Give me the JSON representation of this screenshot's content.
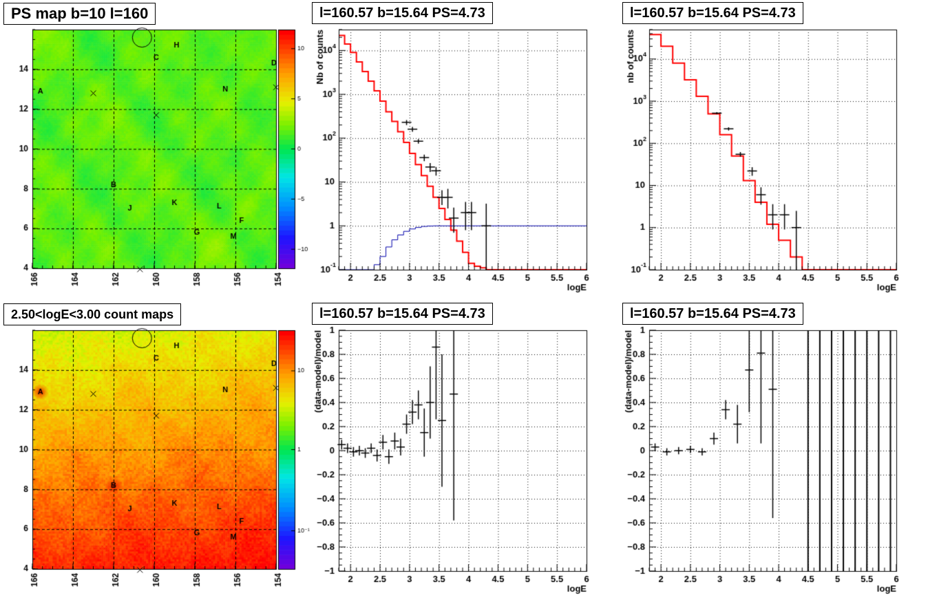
{
  "panels": {
    "p1_title": "PS map b=10 l=160",
    "p2_title": "l=160.57 b=15.64 PS=4.73",
    "p3_title": "l=160.57 b=15.64 PS=4.73",
    "p4_title": "2.50<logE<3.00 count maps",
    "p5_title": "l=160.57 b=15.64 PS=4.73",
    "p6_title": "l=160.57 b=15.64 PS=4.73"
  },
  "chart_data": [
    {
      "id": "ps-map",
      "type": "heatmap",
      "title": "PS map b=10 l=160",
      "xlim": [
        166,
        154
      ],
      "ylim": [
        4,
        16
      ],
      "x_ticks": [
        "166",
        "164",
        "162",
        "160",
        "158",
        "156",
        "154"
      ],
      "y_ticks": [
        "4",
        "6",
        "8",
        "10",
        "12",
        "14"
      ],
      "colorbar_range": [
        -12,
        12
      ],
      "colorbar_ticks": [
        "10",
        "5",
        "0",
        "−5",
        "−10"
      ],
      "sources": [
        {
          "label": "A",
          "l": 165.6,
          "b": 12.9
        },
        {
          "label": "B",
          "l": 162.0,
          "b": 8.2
        },
        {
          "label": "C",
          "l": 159.9,
          "b": 14.6
        },
        {
          "label": "D",
          "l": 154.1,
          "b": 14.3
        },
        {
          "label": "F",
          "l": 155.7,
          "b": 6.4
        },
        {
          "label": "G",
          "l": 157.9,
          "b": 5.8
        },
        {
          "label": "H",
          "l": 158.9,
          "b": 15.2
        },
        {
          "label": "J",
          "l": 161.2,
          "b": 7.0
        },
        {
          "label": "K",
          "l": 159.0,
          "b": 7.3
        },
        {
          "label": "L",
          "l": 156.8,
          "b": 7.1
        },
        {
          "label": "M",
          "l": 156.1,
          "b": 5.6
        },
        {
          "label": "N",
          "l": 156.5,
          "b": 13.0
        }
      ],
      "crosses": [
        {
          "l": 163.0,
          "b": 12.8
        },
        {
          "l": 159.9,
          "b": 11.7
        },
        {
          "l": 160.7,
          "b": 3.95
        },
        {
          "l": 154.0,
          "b": 13.1
        }
      ],
      "circle": {
        "l": 160.6,
        "b": 15.6
      }
    },
    {
      "id": "spectrum-left",
      "type": "line",
      "title": "l=160.57 b=15.64 PS=4.73",
      "xlabel": "logE",
      "ylabel": "Nb of counts",
      "yscale": "log",
      "xlim": [
        1.8,
        6
      ],
      "ylim": [
        0.1,
        30000
      ],
      "x_ticks": [
        "2",
        "2.5",
        "3",
        "3.5",
        "4",
        "4.5",
        "5",
        "5.5",
        "6"
      ],
      "y_ticks": [
        "10^-1",
        "1",
        "10",
        "10^2",
        "10^3",
        "10^4"
      ],
      "series": [
        {
          "type": "step",
          "color": "#ff0000",
          "x_edges": [
            1.8,
            1.9,
            2.0,
            2.1,
            2.2,
            2.3,
            2.4,
            2.5,
            2.6,
            2.7,
            2.8,
            2.9,
            3.0,
            3.1,
            3.2,
            3.3,
            3.4,
            3.5,
            3.6,
            3.7,
            3.8,
            3.9,
            4.0,
            4.1,
            4.2,
            4.3,
            6.0
          ],
          "values": [
            22000,
            14000,
            9000,
            5500,
            3300,
            2000,
            1200,
            700,
            400,
            240,
            140,
            80,
            45,
            25,
            14,
            8,
            4.5,
            2.5,
            1.4,
            0.8,
            0.45,
            0.25,
            0.14,
            0.12,
            0.11,
            0.1
          ]
        },
        {
          "type": "step",
          "color": "#0000aa",
          "x_edges": [
            1.8,
            2.4,
            2.5,
            2.6,
            2.7,
            2.8,
            2.9,
            3.0,
            3.1,
            3.2,
            3.3,
            3.4,
            6.0
          ],
          "values": [
            0.1,
            0.13,
            0.2,
            0.33,
            0.48,
            0.62,
            0.75,
            0.85,
            0.92,
            0.97,
            0.99,
            1.0
          ]
        },
        {
          "type": "errorbar",
          "color": "#000000",
          "x": [
            2.95,
            3.05,
            3.15,
            3.25,
            3.35,
            3.45,
            3.55,
            3.65,
            3.75,
            3.95,
            4.05,
            4.3
          ],
          "y": [
            230,
            160,
            85,
            36,
            22,
            18,
            4.5,
            4.5,
            1.5,
            2,
            2,
            1
          ],
          "ylo": [
            200,
            140,
            75,
            30,
            17,
            14,
            3,
            2.5,
            0.7,
            0.8,
            0.8,
            0.1
          ],
          "yhi": [
            260,
            180,
            95,
            42,
            27,
            22,
            6.5,
            7,
            2.6,
            3.5,
            3.5,
            3.2
          ]
        }
      ]
    },
    {
      "id": "spectrum-right",
      "type": "line",
      "title": "l=160.57 b=15.64 PS=4.73",
      "xlabel": "logE",
      "ylabel": "nb of counts",
      "yscale": "log",
      "xlim": [
        1.8,
        6
      ],
      "ylim": [
        0.1,
        50000
      ],
      "x_ticks": [
        "2",
        "2.5",
        "3",
        "3.5",
        "4",
        "4.5",
        "5",
        "5.5",
        "6"
      ],
      "y_ticks": [
        "10^-1",
        "1",
        "10",
        "10^2",
        "10^3",
        "10^4"
      ],
      "series": [
        {
          "type": "step",
          "color": "#ff0000",
          "x_edges": [
            1.8,
            2.0,
            2.2,
            2.4,
            2.6,
            2.8,
            3.0,
            3.2,
            3.4,
            3.6,
            3.8,
            4.0,
            4.2,
            4.4,
            6.0
          ],
          "values": [
            38000,
            20000,
            8000,
            3200,
            1300,
            500,
            160,
            50,
            13,
            4,
            1.2,
            0.5,
            0.2,
            0.1
          ]
        },
        {
          "type": "errorbar",
          "color": "#000000",
          "x": [
            2.95,
            3.15,
            3.35,
            3.55,
            3.7,
            3.9,
            4.1,
            4.3
          ],
          "y": [
            520,
            220,
            55,
            22,
            6,
            2,
            2,
            1
          ],
          "ylo": [
            490,
            200,
            48,
            17,
            3.5,
            0.9,
            0.9,
            0.1
          ],
          "yhi": [
            550,
            240,
            62,
            27,
            9,
            3.6,
            3.6,
            2.5
          ]
        }
      ]
    },
    {
      "id": "count-map",
      "type": "heatmap",
      "title": "2.50<logE<3.00 count maps",
      "xlim": [
        166,
        154
      ],
      "ylim": [
        4,
        16
      ],
      "x_ticks": [
        "166",
        "164",
        "162",
        "160",
        "158",
        "156",
        "154"
      ],
      "y_ticks": [
        "4",
        "6",
        "8",
        "10",
        "12",
        "14"
      ],
      "colorbar_scale": "log",
      "colorbar_ticks": [
        "10",
        "1",
        "10^-1"
      ],
      "sources_same_as": "ps-map"
    },
    {
      "id": "residual-left",
      "type": "scatter",
      "title": "l=160.57 b=15.64 PS=4.73",
      "xlabel": "logE",
      "ylabel": "(data-model)/model",
      "xlim": [
        1.8,
        6
      ],
      "ylim": [
        -1,
        1
      ],
      "x_ticks": [
        "2",
        "2.5",
        "3",
        "3.5",
        "4",
        "4.5",
        "5",
        "5.5",
        "6"
      ],
      "y_ticks": [
        "−1",
        "−0.8",
        "−0.6",
        "−0.4",
        "−0.2",
        "0",
        "0.2",
        "0.4",
        "0.6",
        "0.8",
        "1"
      ],
      "x": [
        1.85,
        1.95,
        2.05,
        2.15,
        2.25,
        2.35,
        2.45,
        2.55,
        2.65,
        2.75,
        2.85,
        2.95,
        3.05,
        3.15,
        3.25,
        3.35,
        3.45,
        3.55,
        3.75
      ],
      "y": [
        0.05,
        0.02,
        -0.01,
        0.0,
        -0.02,
        0.02,
        -0.04,
        0.07,
        -0.05,
        0.08,
        0.03,
        0.22,
        0.32,
        0.38,
        0.15,
        0.4,
        0.86,
        0.25,
        0.47
      ],
      "err": [
        0.04,
        0.04,
        0.04,
        0.04,
        0.04,
        0.04,
        0.05,
        0.06,
        0.06,
        0.07,
        0.07,
        0.08,
        0.1,
        0.12,
        0.2,
        0.3,
        0.6,
        0.55,
        1.05
      ]
    },
    {
      "id": "residual-right",
      "type": "scatter",
      "title": "l=160.57 b=15.64 PS=4.73",
      "xlabel": "logE",
      "ylabel": "(data-model)/model",
      "xlim": [
        1.8,
        6
      ],
      "ylim": [
        -1,
        1
      ],
      "x_ticks": [
        "2",
        "2.5",
        "3",
        "3.5",
        "4",
        "4.5",
        "5",
        "5.5",
        "6"
      ],
      "y_ticks": [
        "−1",
        "−0.8",
        "−0.6",
        "−0.4",
        "−0.2",
        "0",
        "0.2",
        "0.4",
        "0.6",
        "0.8",
        "1"
      ],
      "x": [
        1.9,
        2.1,
        2.3,
        2.5,
        2.7,
        2.9,
        3.1,
        3.3,
        3.5,
        3.7,
        3.9
      ],
      "y": [
        0.03,
        -0.01,
        0.0,
        0.01,
        -0.01,
        0.1,
        0.34,
        0.22,
        0.67,
        0.81,
        0.51
      ],
      "err": [
        0.03,
        0.03,
        0.03,
        0.03,
        0.03,
        0.05,
        0.08,
        0.16,
        0.35,
        0.75,
        1.07
      ],
      "vertical_lines_x": [
        4.5,
        4.7,
        4.9,
        5.1,
        5.3,
        5.5,
        5.7,
        5.9
      ]
    }
  ]
}
